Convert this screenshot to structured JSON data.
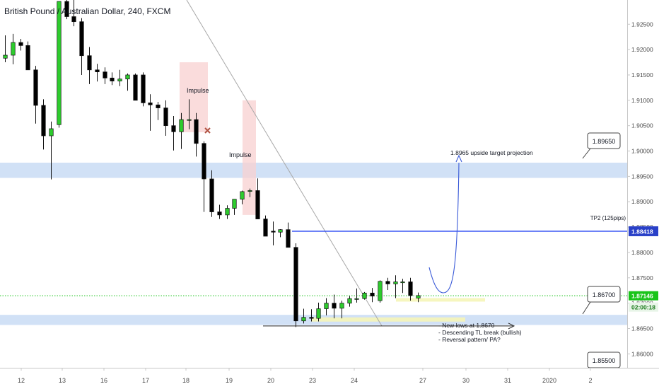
{
  "chart_data": {
    "type": "candlestick",
    "title": "British Pound / Australian Dollar, 240, FXCM",
    "x_tick_labels": [
      "12",
      "13",
      "16",
      "17",
      "18",
      "19",
      "20",
      "23",
      "24",
      "27",
      "30",
      "31",
      "2020",
      "2"
    ],
    "y_tick_labels": [
      "1.92500",
      "1.92000",
      "1.91500",
      "1.91000",
      "1.90500",
      "1.90000",
      "1.89500",
      "1.89000",
      "1.88500",
      "1.88000",
      "1.87500",
      "1.87000",
      "1.86500",
      "1.86000"
    ],
    "ylim": [
      1.8567,
      1.9295
    ],
    "candles": [
      {
        "o": 1.9183,
        "h": 1.9228,
        "l": 1.9175,
        "c": 1.9189
      },
      {
        "o": 1.9189,
        "h": 1.9231,
        "l": 1.9171,
        "c": 1.9214
      },
      {
        "o": 1.9214,
        "h": 1.9221,
        "l": 1.9198,
        "c": 1.9208
      },
      {
        "o": 1.9208,
        "h": 1.9216,
        "l": 1.916,
        "c": 1.916
      },
      {
        "o": 1.916,
        "h": 1.9168,
        "l": 1.9054,
        "c": 1.909
      },
      {
        "o": 1.909,
        "h": 1.9102,
        "l": 1.9003,
        "c": 1.903
      },
      {
        "o": 1.903,
        "h": 1.9058,
        "l": 1.8944,
        "c": 1.9044
      },
      {
        "o": 1.9052,
        "h": 1.9295,
        "l": 1.9046,
        "c": 1.9295
      },
      {
        "o": 1.9295,
        "h": 1.93,
        "l": 1.926,
        "c": 1.9265
      },
      {
        "o": 1.9265,
        "h": 1.93,
        "l": 1.9246,
        "c": 1.9255
      },
      {
        "o": 1.9255,
        "h": 1.9262,
        "l": 1.915,
        "c": 1.9188
      },
      {
        "o": 1.9188,
        "h": 1.9205,
        "l": 1.9132,
        "c": 1.916
      },
      {
        "o": 1.916,
        "h": 1.9172,
        "l": 1.9137,
        "c": 1.9156
      },
      {
        "o": 1.9156,
        "h": 1.9165,
        "l": 1.9132,
        "c": 1.9144
      },
      {
        "o": 1.9144,
        "h": 1.9155,
        "l": 1.913,
        "c": 1.9138
      },
      {
        "o": 1.9138,
        "h": 1.916,
        "l": 1.9128,
        "c": 1.9142
      },
      {
        "o": 1.9142,
        "h": 1.9153,
        "l": 1.9119,
        "c": 1.915
      },
      {
        "o": 1.915,
        "h": 1.9153,
        "l": 1.91,
        "c": 1.91
      },
      {
        "o": 1.915,
        "h": 1.9155,
        "l": 1.9088,
        "c": 1.9095
      },
      {
        "o": 1.9095,
        "h": 1.9112,
        "l": 1.904,
        "c": 1.9091
      },
      {
        "o": 1.9091,
        "h": 1.9097,
        "l": 1.9061,
        "c": 1.9085
      },
      {
        "o": 1.9085,
        "h": 1.91,
        "l": 1.903,
        "c": 1.905
      },
      {
        "o": 1.905,
        "h": 1.9069,
        "l": 1.9001,
        "c": 1.9038
      },
      {
        "o": 1.9038,
        "h": 1.9075,
        "l": 1.9004,
        "c": 1.9062
      },
      {
        "o": 1.9062,
        "h": 1.9102,
        "l": 1.9043,
        "c": 1.9062
      },
      {
        "o": 1.9062,
        "h": 1.9075,
        "l": 1.8989,
        "c": 1.9015
      },
      {
        "o": 1.9015,
        "h": 1.9019,
        "l": 1.888,
        "c": 1.8945
      },
      {
        "o": 1.8945,
        "h": 1.8962,
        "l": 1.887,
        "c": 1.888
      },
      {
        "o": 1.888,
        "h": 1.8894,
        "l": 1.8866,
        "c": 1.8874
      },
      {
        "o": 1.8874,
        "h": 1.8893,
        "l": 1.8866,
        "c": 1.8887
      },
      {
        "o": 1.8887,
        "h": 1.8905,
        "l": 1.8874,
        "c": 1.8905
      },
      {
        "o": 1.8905,
        "h": 1.8922,
        "l": 1.8895,
        "c": 1.892
      },
      {
        "o": 1.8921,
        "h": 1.8926,
        "l": 1.8909,
        "c": 1.8922
      },
      {
        "o": 1.8922,
        "h": 1.8946,
        "l": 1.8866,
        "c": 1.8866
      },
      {
        "o": 1.8866,
        "h": 1.8873,
        "l": 1.8832,
        "c": 1.8832
      },
      {
        "o": 1.8842,
        "h": 1.8861,
        "l": 1.8814,
        "c": 1.884
      },
      {
        "o": 1.884,
        "h": 1.8846,
        "l": 1.883,
        "c": 1.8845
      },
      {
        "o": 1.8845,
        "h": 1.8859,
        "l": 1.881,
        "c": 1.881
      },
      {
        "o": 1.881,
        "h": 1.8818,
        "l": 1.8653,
        "c": 1.8665
      },
      {
        "o": 1.8665,
        "h": 1.8689,
        "l": 1.866,
        "c": 1.8672
      },
      {
        "o": 1.8672,
        "h": 1.8688,
        "l": 1.8664,
        "c": 1.867
      },
      {
        "o": 1.867,
        "h": 1.8701,
        "l": 1.8664,
        "c": 1.8689
      },
      {
        "o": 1.8689,
        "h": 1.871,
        "l": 1.8676,
        "c": 1.87
      },
      {
        "o": 1.87,
        "h": 1.8717,
        "l": 1.867,
        "c": 1.869
      },
      {
        "o": 1.869,
        "h": 1.8705,
        "l": 1.867,
        "c": 1.87
      },
      {
        "o": 1.87,
        "h": 1.8714,
        "l": 1.8693,
        "c": 1.8709
      },
      {
        "o": 1.8709,
        "h": 1.8729,
        "l": 1.8701,
        "c": 1.8709
      },
      {
        "o": 1.8709,
        "h": 1.8722,
        "l": 1.8707,
        "c": 1.872
      },
      {
        "o": 1.872,
        "h": 1.873,
        "l": 1.8702,
        "c": 1.8714
      },
      {
        "o": 1.8705,
        "h": 1.8745,
        "l": 1.8701,
        "c": 1.8743
      },
      {
        "o": 1.8743,
        "h": 1.875,
        "l": 1.8726,
        "c": 1.8738
      },
      {
        "o": 1.8738,
        "h": 1.8755,
        "l": 1.871,
        "c": 1.8742
      },
      {
        "o": 1.8742,
        "h": 1.8748,
        "l": 1.872,
        "c": 1.8742
      },
      {
        "o": 1.8742,
        "h": 1.875,
        "l": 1.8705,
        "c": 1.8715
      },
      {
        "o": 1.871,
        "h": 1.8721,
        "l": 1.8702,
        "c": 1.8715
      }
    ],
    "colors": {
      "up": "#2ecc2e",
      "down": "#000000",
      "zone_fill": "#c9dcf5",
      "box_fill": "#f8d0d0",
      "blue_line": "#1f3ff2",
      "green_line": "#19c419",
      "price_badge": "#2940c8",
      "projection_curve": "#3a5ad8",
      "x_marker": "#b05040",
      "highlight": "#f5f5b8"
    },
    "annotations": {
      "impulse_1": "Impulse",
      "impulse_2": "Impulse",
      "projection": "1.8965 upside target projection",
      "tp2": "TP2 (125pips)",
      "notes": [
        "- New lows at 1.8670",
        "- Descending TL break (bullish)",
        "- Reversal pattern/ PA?"
      ]
    },
    "price_levels": {
      "callout_upper": "1.89650",
      "callout_lower": "1.86700",
      "callout_bottom": "1.85500",
      "tp2_price": "1.88418",
      "current_price": "1.87146",
      "countdown": "02:00:18"
    }
  }
}
